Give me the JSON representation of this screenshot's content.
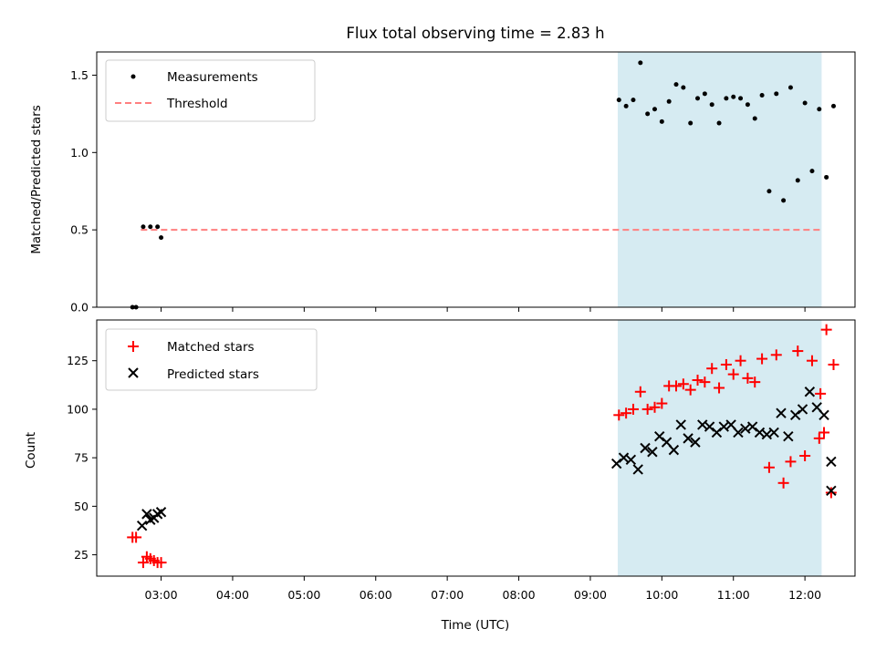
{
  "chart_data": [
    {
      "type": "scatter",
      "title": "Flux total observing time = 2.83 h",
      "xlabel": "",
      "ylabel": "Matched/Predicted stars",
      "ylim": [
        0,
        1.65
      ],
      "yticks": [
        0.0,
        0.5,
        1.0,
        1.5
      ],
      "ytick_labels": [
        "0.0",
        "0.5",
        "1.0",
        "1.5"
      ],
      "legend": {
        "placement": "top-left",
        "entries": [
          "Measurements",
          "Threshold"
        ]
      },
      "threshold": {
        "name": "Threshold",
        "value": 0.5,
        "x_start": "02:43",
        "x_end": "12:14",
        "color": "#ff7f7f",
        "style": "dashed"
      },
      "shaded_region": {
        "x_start": "09:23",
        "x_end": "12:14",
        "color": "#add8e6"
      },
      "series": [
        {
          "name": "Measurements",
          "color": "#000000",
          "marker": "dot",
          "x": [
            "02:36",
            "02:39",
            "02:45",
            "02:51",
            "02:57",
            "03:00",
            "09:24",
            "09:30",
            "09:36",
            "09:42",
            "09:48",
            "09:54",
            "10:00",
            "10:06",
            "10:12",
            "10:18",
            "10:24",
            "10:30",
            "10:36",
            "10:42",
            "10:48",
            "10:54",
            "11:00",
            "11:06",
            "11:12",
            "11:18",
            "11:24",
            "11:30",
            "11:36",
            "11:42",
            "11:48",
            "11:54",
            "12:00",
            "12:06",
            "12:12",
            "12:18",
            "12:24"
          ],
          "y": [
            0.0,
            0.0,
            0.52,
            0.52,
            0.52,
            0.45,
            1.34,
            1.3,
            1.34,
            1.58,
            1.25,
            1.28,
            1.2,
            1.33,
            1.44,
            1.42,
            1.19,
            1.35,
            1.38,
            1.31,
            1.19,
            1.35,
            1.36,
            1.35,
            1.31,
            1.22,
            1.37,
            0.75,
            1.38,
            0.69,
            1.42,
            0.82,
            1.32,
            0.88,
            1.28,
            0.84,
            1.3
          ]
        }
      ]
    },
    {
      "type": "scatter",
      "title": "",
      "xlabel": "Time (UTC)",
      "ylabel": "Count",
      "ylim": [
        14,
        146
      ],
      "yticks": [
        25,
        50,
        75,
        100,
        125
      ],
      "ytick_labels": [
        "25",
        "50",
        "75",
        "100",
        "125"
      ],
      "xtick_labels": [
        "03:00",
        "04:00",
        "05:00",
        "06:00",
        "07:00",
        "08:00",
        "09:00",
        "10:00",
        "11:00",
        "12:00"
      ],
      "legend": {
        "placement": "top-left",
        "entries": [
          "Matched stars",
          "Predicted stars"
        ]
      },
      "shaded_region": {
        "x_start": "09:23",
        "x_end": "12:14",
        "color": "#add8e6"
      },
      "series": [
        {
          "name": "Matched stars",
          "color": "#ff0000",
          "marker": "plus",
          "x": [
            "02:36",
            "02:39",
            "02:45",
            "02:48",
            "02:51",
            "02:54",
            "02:57",
            "03:00",
            "09:24",
            "09:30",
            "09:36",
            "09:42",
            "09:48",
            "09:54",
            "10:00",
            "10:06",
            "10:12",
            "10:18",
            "10:24",
            "10:30",
            "10:36",
            "10:42",
            "10:48",
            "10:54",
            "11:00",
            "11:06",
            "11:12",
            "11:18",
            "11:24",
            "11:30",
            "11:36",
            "11:42",
            "11:48",
            "11:54",
            "12:00",
            "12:06",
            "12:12",
            "12:18",
            "12:24"
          ],
          "y": [
            34,
            34,
            21,
            24,
            23,
            22,
            21,
            21,
            97,
            98,
            100,
            109,
            100,
            101,
            103,
            112,
            112,
            113,
            110,
            115,
            114,
            121,
            111,
            123,
            118,
            125,
            116,
            114,
            126,
            70,
            128,
            62,
            73,
            130,
            76,
            125,
            85,
            141,
            123
          ]
        },
        {
          "name": "Predicted stars",
          "color": "#000000",
          "marker": "x",
          "x": [
            "02:44",
            "02:48",
            "02:51",
            "02:54",
            "02:57",
            "03:00",
            "09:22",
            "09:28",
            "09:34",
            "09:40",
            "09:46",
            "09:52",
            "09:58",
            "10:04",
            "10:10",
            "10:16",
            "10:22",
            "10:28",
            "10:34",
            "10:40",
            "10:46",
            "10:52",
            "10:58",
            "11:04",
            "11:10",
            "11:16",
            "11:22",
            "11:28",
            "11:34",
            "11:40",
            "11:46",
            "11:52",
            "11:58",
            "12:04",
            "12:10",
            "12:16",
            "12:22"
          ],
          "y": [
            40,
            46,
            43,
            44,
            46,
            47,
            72,
            75,
            74,
            69,
            80,
            78,
            86,
            83,
            79,
            92,
            85,
            83,
            92,
            91,
            88,
            91,
            92,
            88,
            90,
            91,
            88,
            87,
            88,
            98,
            86,
            97,
            100,
            109,
            101,
            97,
            73
          ]
        }
      ],
      "extra_points": [
        {
          "series": "Matched stars",
          "x": "12:13",
          "y": 108
        },
        {
          "series": "Matched stars",
          "x": "12:16",
          "y": 88
        },
        {
          "series": "Matched stars",
          "x": "12:22",
          "y": 57
        },
        {
          "series": "Predicted stars",
          "x": "12:22",
          "y": 58
        }
      ]
    }
  ]
}
